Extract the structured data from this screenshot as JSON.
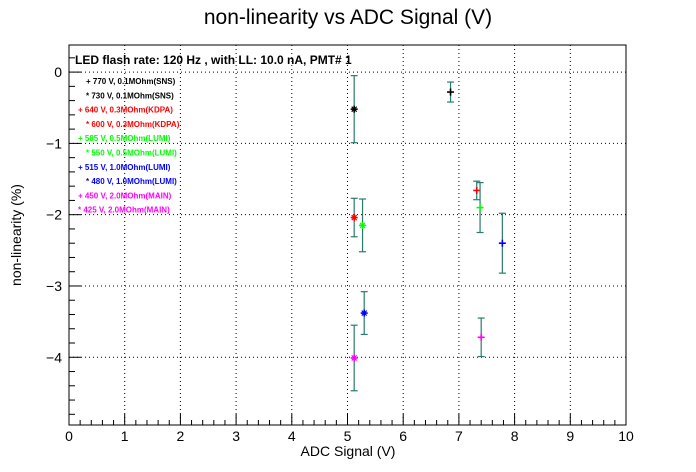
{
  "chart_data": {
    "type": "scatter",
    "title": "non-linearity vs ADC Signal (V)",
    "header_text": "LED flash rate: 120 Hz , with LL: 10.0 nA, PMT# 1",
    "xlabel": "ADC Signal (V)",
    "ylabel": "non-linearity (%)",
    "xlim": [
      0,
      10
    ],
    "ylim": [
      -4.95,
      0.38
    ],
    "x_ticks": [
      0,
      1,
      2,
      3,
      4,
      5,
      6,
      7,
      8,
      9,
      10
    ],
    "y_ticks": [
      0,
      -1,
      -2,
      -3,
      -4
    ],
    "grid": true,
    "legend_position": "top-left",
    "series": [
      {
        "name": "770 V, 0.1MOhm(SNS)",
        "color": "#000000",
        "marker": "+",
        "points": [
          {
            "x": 6.85,
            "y": -0.28,
            "err": 0.14
          }
        ]
      },
      {
        "name": "730 V, 0.1MOhm(SNS)",
        "color": "#000000",
        "marker": "*",
        "points": [
          {
            "x": 5.12,
            "y": -0.52,
            "err": 0.47
          }
        ]
      },
      {
        "name": "640 V, 0.3MOhm(KDPA)",
        "color": "#ff0000",
        "marker": "+",
        "points": [
          {
            "x": 7.32,
            "y": -1.66,
            "err": 0.13
          }
        ]
      },
      {
        "name": "600 V, 0.3MOhm(KDPA)",
        "color": "#ff0000",
        "marker": "*",
        "points": [
          {
            "x": 5.12,
            "y": -2.04,
            "err": 0.27
          }
        ]
      },
      {
        "name": "585 V, 0.5MOhm(LUMI)",
        "color": "#00ff00",
        "marker": "+",
        "points": [
          {
            "x": 7.38,
            "y": -1.9,
            "err": 0.35
          }
        ]
      },
      {
        "name": "550 V, 0.5MOhm(LUMI)",
        "color": "#00ff00",
        "marker": "*",
        "points": [
          {
            "x": 5.27,
            "y": -2.15,
            "err": 0.37
          }
        ]
      },
      {
        "name": "515 V, 1.0MOhm(LUMI)",
        "color": "#0000ff",
        "marker": "+",
        "points": [
          {
            "x": 7.78,
            "y": -2.4,
            "err": 0.42
          }
        ]
      },
      {
        "name": "480 V, 1.0MOhm(LUMI)",
        "color": "#0000ff",
        "marker": "*",
        "points": [
          {
            "x": 5.3,
            "y": -3.38,
            "err": 0.3
          }
        ]
      },
      {
        "name": "450 V, 2.0MOhm(MAIN)",
        "color": "#ff00ff",
        "marker": "+",
        "points": [
          {
            "x": 7.4,
            "y": -3.72,
            "err": 0.27
          }
        ]
      },
      {
        "name": "425 V, 2.0MOhm(MAIN)",
        "color": "#ff00ff",
        "marker": "*",
        "points": [
          {
            "x": 5.12,
            "y": -4.01,
            "err": 0.46
          }
        ]
      }
    ],
    "errorbar_color": "#2a7a6e"
  }
}
